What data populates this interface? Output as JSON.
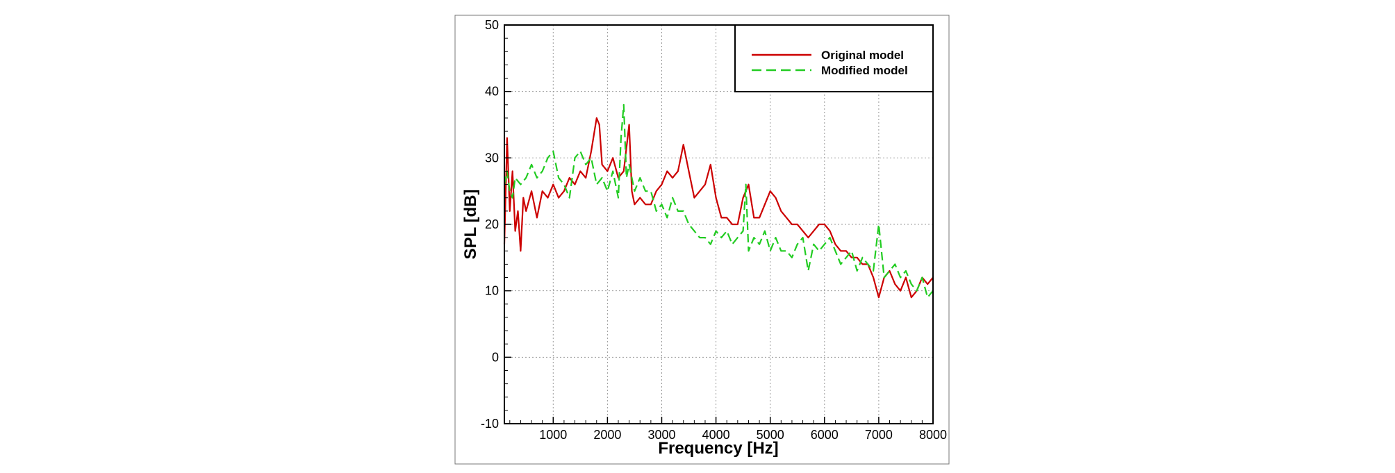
{
  "chart_data": {
    "type": "line",
    "xlabel": "Frequency [Hz]",
    "ylabel": "SPL [dB]",
    "xlim": [
      100,
      8000
    ],
    "ylim": [
      -10,
      50
    ],
    "xticks": [
      1000,
      2000,
      3000,
      4000,
      5000,
      6000,
      7000,
      8000
    ],
    "yticks": [
      -10,
      0,
      10,
      20,
      30,
      40,
      50
    ],
    "grid": true,
    "legend_position": "top-right",
    "series": [
      {
        "name": "Original model",
        "color": "#cc0000",
        "dash": "solid",
        "x": [
          100,
          150,
          200,
          250,
          300,
          350,
          400,
          450,
          500,
          600,
          700,
          800,
          900,
          1000,
          1100,
          1200,
          1300,
          1400,
          1500,
          1600,
          1700,
          1800,
          1850,
          1900,
          2000,
          2100,
          2200,
          2300,
          2400,
          2450,
          2500,
          2600,
          2700,
          2800,
          2900,
          3000,
          3100,
          3200,
          3300,
          3400,
          3500,
          3600,
          3700,
          3800,
          3900,
          4000,
          4100,
          4200,
          4300,
          4400,
          4500,
          4600,
          4700,
          4800,
          4900,
          5000,
          5100,
          5200,
          5300,
          5400,
          5500,
          5600,
          5700,
          5800,
          5900,
          6000,
          6100,
          6200,
          6300,
          6400,
          6500,
          6600,
          6700,
          6800,
          6900,
          7000,
          7100,
          7200,
          7300,
          7400,
          7500,
          7600,
          7700,
          7800,
          7900,
          8000
        ],
        "y": [
          17,
          33,
          22,
          28,
          19,
          22,
          16,
          24,
          22,
          25,
          21,
          25,
          24,
          26,
          24,
          25,
          27,
          26,
          28,
          27,
          31,
          36,
          35,
          29,
          28,
          30,
          27,
          28,
          35,
          25,
          23,
          24,
          23,
          23,
          25,
          26,
          28,
          27,
          28,
          32,
          28,
          24,
          25,
          26,
          29,
          24,
          21,
          21,
          20,
          20,
          24,
          26,
          21,
          21,
          23,
          25,
          24,
          22,
          21,
          20,
          20,
          19,
          18,
          19,
          20,
          20,
          19,
          17,
          16,
          16,
          15,
          15,
          14,
          14,
          12,
          9,
          12,
          13,
          11,
          10,
          12,
          9,
          10,
          12,
          11,
          12
        ]
      },
      {
        "name": "Modified model",
        "color": "#22cc22",
        "dash": "dashed",
        "x": [
          100,
          150,
          200,
          250,
          300,
          400,
          500,
          600,
          700,
          800,
          900,
          1000,
          1100,
          1200,
          1300,
          1400,
          1500,
          1600,
          1700,
          1800,
          1900,
          2000,
          2100,
          2200,
          2250,
          2300,
          2350,
          2400,
          2500,
          2600,
          2700,
          2800,
          2900,
          3000,
          3100,
          3200,
          3300,
          3400,
          3500,
          3600,
          3700,
          3800,
          3900,
          4000,
          4100,
          4200,
          4300,
          4400,
          4500,
          4550,
          4600,
          4700,
          4800,
          4900,
          5000,
          5100,
          5200,
          5300,
          5400,
          5500,
          5600,
          5700,
          5800,
          5900,
          6000,
          6100,
          6200,
          6300,
          6400,
          6500,
          6600,
          6700,
          6800,
          6900,
          7000,
          7100,
          7200,
          7300,
          7400,
          7500,
          7600,
          7700,
          7800,
          7900,
          8000
        ],
        "y": [
          26,
          28,
          25,
          24,
          27,
          26,
          27,
          29,
          27,
          28,
          30,
          31,
          27,
          26,
          24,
          30,
          31,
          29,
          30,
          26,
          27,
          25,
          28,
          24,
          33,
          38,
          27,
          29,
          25,
          27,
          25,
          25,
          22,
          23,
          21,
          24,
          22,
          22,
          20,
          19,
          18,
          18,
          17,
          19,
          18,
          19,
          17,
          18,
          19,
          26,
          16,
          18,
          17,
          19,
          16,
          18,
          16,
          16,
          15,
          17,
          18,
          13,
          17,
          16,
          17,
          18,
          16,
          14,
          15,
          16,
          13,
          15,
          14,
          13,
          20,
          12,
          13,
          14,
          12,
          13,
          11,
          10,
          12,
          9,
          10
        ]
      }
    ]
  }
}
